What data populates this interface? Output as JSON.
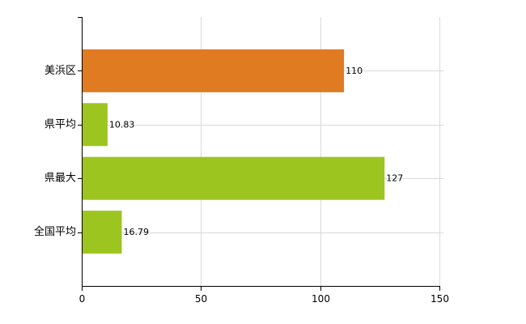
{
  "chart_data": {
    "type": "bar",
    "orientation": "horizontal",
    "categories": [
      "美浜区",
      "県平均",
      "県最大",
      "全国平均"
    ],
    "values": [
      110,
      10.83,
      127,
      16.79
    ],
    "value_labels": [
      "110",
      "10.83",
      "127",
      "16.79"
    ],
    "bar_colors": [
      "#e07b22",
      "#9dc520",
      "#9dc520",
      "#9dc520"
    ],
    "xlim": [
      0,
      150
    ],
    "xticks": [
      0,
      50,
      100,
      150
    ],
    "xtick_labels": [
      "0",
      "50",
      "100",
      "150"
    ],
    "grid": true,
    "legend": "none"
  }
}
